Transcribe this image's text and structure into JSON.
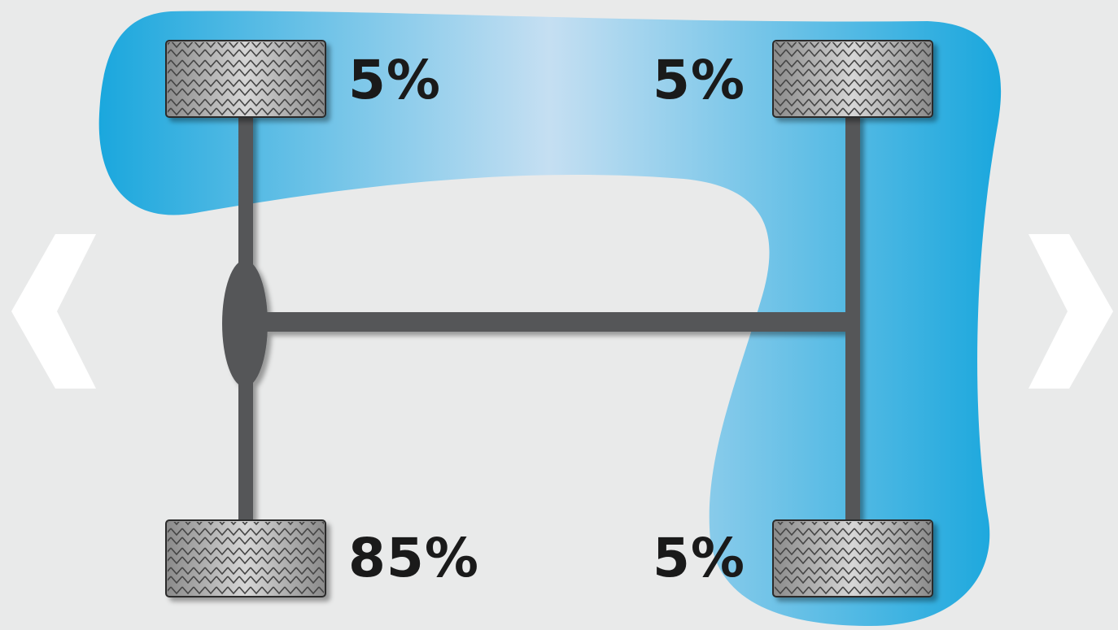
{
  "wheels": {
    "front_left": {
      "percent": "5%"
    },
    "front_right": {
      "percent": "5%"
    },
    "rear_left": {
      "percent": "85%"
    },
    "rear_right": {
      "percent": "5%"
    }
  },
  "navigation": {
    "previous_icon": "chevron-left-icon",
    "next_icon": "chevron-right-icon"
  },
  "colors": {
    "background": "#e9eaea",
    "highlight": "#1aa7dd",
    "highlight_light": "#c5dff2",
    "axle": "#555759",
    "tire": "#9a9a9a",
    "text": "#1a1a1a"
  }
}
